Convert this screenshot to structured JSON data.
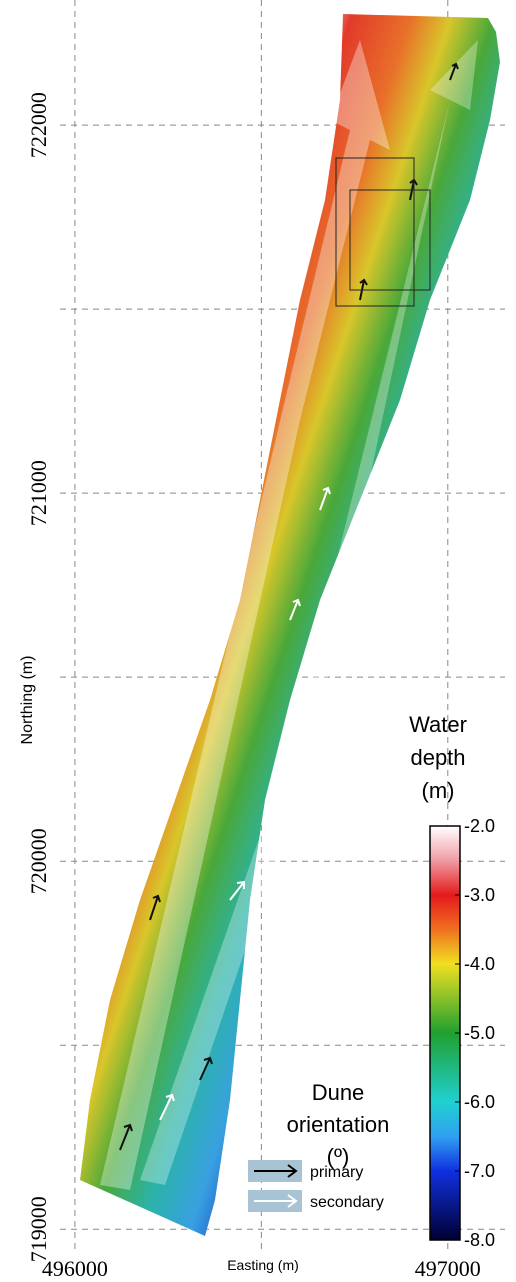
{
  "map": {
    "x_axis": {
      "label": "Easting (m)",
      "lim": [
        495960,
        497140
      ],
      "ticks": [
        496000,
        {
          "value": 496500,
          "label": null
        },
        497000
      ]
    },
    "y_axis": {
      "label": "Northing (m)",
      "lim": [
        718930,
        722340
      ],
      "ticks": [
        719000,
        {
          "value": 719500,
          "label": null
        },
        720000,
        {
          "value": 720500,
          "label": null
        },
        721000,
        {
          "value": 721500,
          "label": null
        },
        722000
      ]
    },
    "colorbar": {
      "title": [
        "Water",
        "depth",
        "(m)"
      ],
      "lim": [
        -2,
        -8
      ],
      "ticks": [
        {
          "value": -2,
          "label": "-2.0"
        },
        {
          "value": -3,
          "label": "-3.0"
        },
        {
          "value": -4,
          "label": "-4.0"
        },
        {
          "value": -5,
          "label": "-5.0"
        },
        {
          "value": -6,
          "label": "-6.0"
        },
        {
          "value": -7,
          "label": "-7.0"
        },
        {
          "value": -8,
          "label": "-8.0"
        }
      ]
    },
    "legend": {
      "title": [
        "Dune",
        "orientation",
        "(º)"
      ],
      "entries": [
        "primary",
        "secondary"
      ]
    }
  }
}
